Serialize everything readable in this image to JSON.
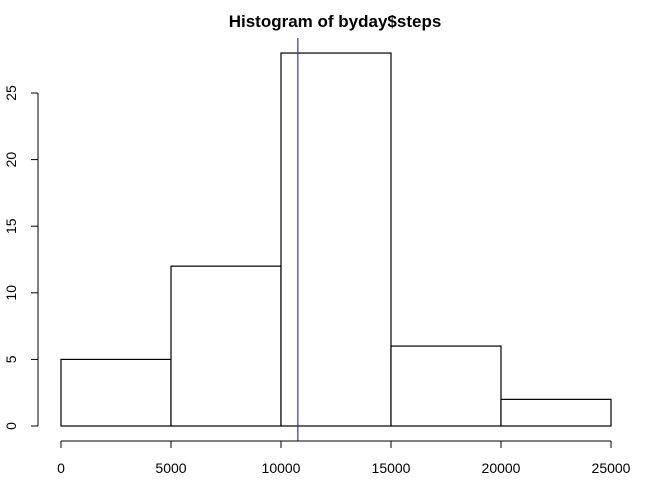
{
  "chart_data": {
    "type": "bar",
    "title": "Histogram of byday$steps",
    "xlabel": "",
    "ylabel": "",
    "bins": [
      {
        "from": 0,
        "to": 5000,
        "count": 5
      },
      {
        "from": 5000,
        "to": 10000,
        "count": 12
      },
      {
        "from": 10000,
        "to": 15000,
        "count": 28
      },
      {
        "from": 15000,
        "to": 20000,
        "count": 6
      },
      {
        "from": 20000,
        "to": 25000,
        "count": 2
      }
    ],
    "xlim": [
      0,
      25000
    ],
    "ylim": [
      0,
      28
    ],
    "x_ticks": [
      0,
      5000,
      10000,
      15000,
      20000,
      25000
    ],
    "x_tick_labels": [
      "0",
      "5000",
      "10000",
      "15000",
      "20000",
      "25000"
    ],
    "y_ticks": [
      0,
      5,
      10,
      15,
      20,
      25
    ],
    "y_tick_labels": [
      "0",
      "5",
      "10",
      "15",
      "20",
      "25"
    ],
    "reference_line": {
      "x": 10766,
      "color": "#3b3b8f"
    },
    "grid": false,
    "legend": "none"
  }
}
